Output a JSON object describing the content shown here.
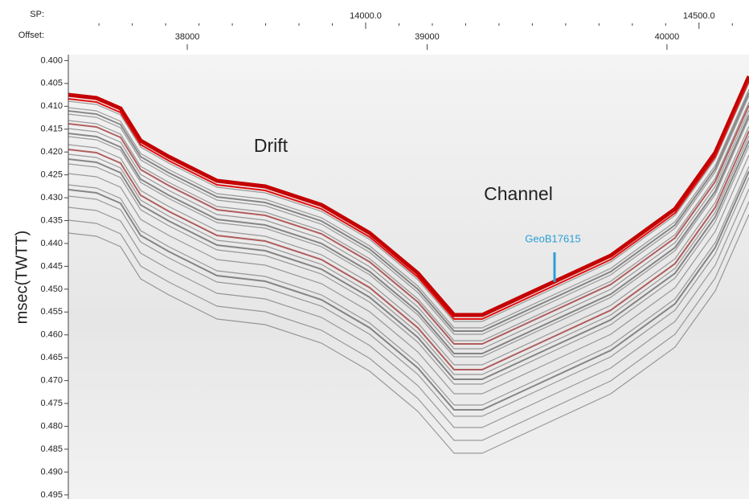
{
  "chart_data": {
    "type": "seismic",
    "ylabel": "msec(TWTT)",
    "ylim": [
      0.3987,
      0.4959
    ],
    "yticks": [
      {
        "value": 0.4,
        "label": "0.400"
      },
      {
        "value": 0.405,
        "label": "0.405"
      },
      {
        "value": 0.41,
        "label": "0.410"
      },
      {
        "value": 0.415,
        "label": "0.415"
      },
      {
        "value": 0.42,
        "label": "0.420"
      },
      {
        "value": 0.425,
        "label": "0.425"
      },
      {
        "value": 0.43,
        "label": "0.430"
      },
      {
        "value": 0.435,
        "label": "0.435"
      },
      {
        "value": 0.44,
        "label": "0.440"
      },
      {
        "value": 0.445,
        "label": "0.445"
      },
      {
        "value": 0.45,
        "label": "0.450"
      },
      {
        "value": 0.455,
        "label": "0.455"
      },
      {
        "value": 0.46,
        "label": "0.460"
      },
      {
        "value": 0.465,
        "label": "0.465"
      },
      {
        "value": 0.47,
        "label": "0.470"
      },
      {
        "value": 0.475,
        "label": "0.475"
      },
      {
        "value": 0.48,
        "label": "0.480"
      },
      {
        "value": 0.485,
        "label": "0.485"
      },
      {
        "value": 0.49,
        "label": "0.490"
      },
      {
        "value": 0.495,
        "label": "0.495"
      }
    ],
    "offset_label": "Offset:",
    "offset_lim": [
      37504,
      40342
    ],
    "offset_ticks": [
      38000,
      39000,
      40000
    ],
    "sp_label": "SP:",
    "sp_lim": [
      13554,
      14575
    ],
    "sp_ticks": [
      {
        "value": 14000,
        "label": "14000.0"
      },
      {
        "value": 14500,
        "label": "14500.0"
      }
    ],
    "sp_minor_ticks": [
      13600,
      13650,
      13700,
      13750,
      13800,
      13850,
      13900,
      13950,
      14050,
      14100,
      14150,
      14200,
      14250,
      14300,
      14350,
      14400,
      14450,
      14550
    ],
    "annotations": [
      "Drift",
      "Channel",
      "GeoB17615"
    ]
  }
}
